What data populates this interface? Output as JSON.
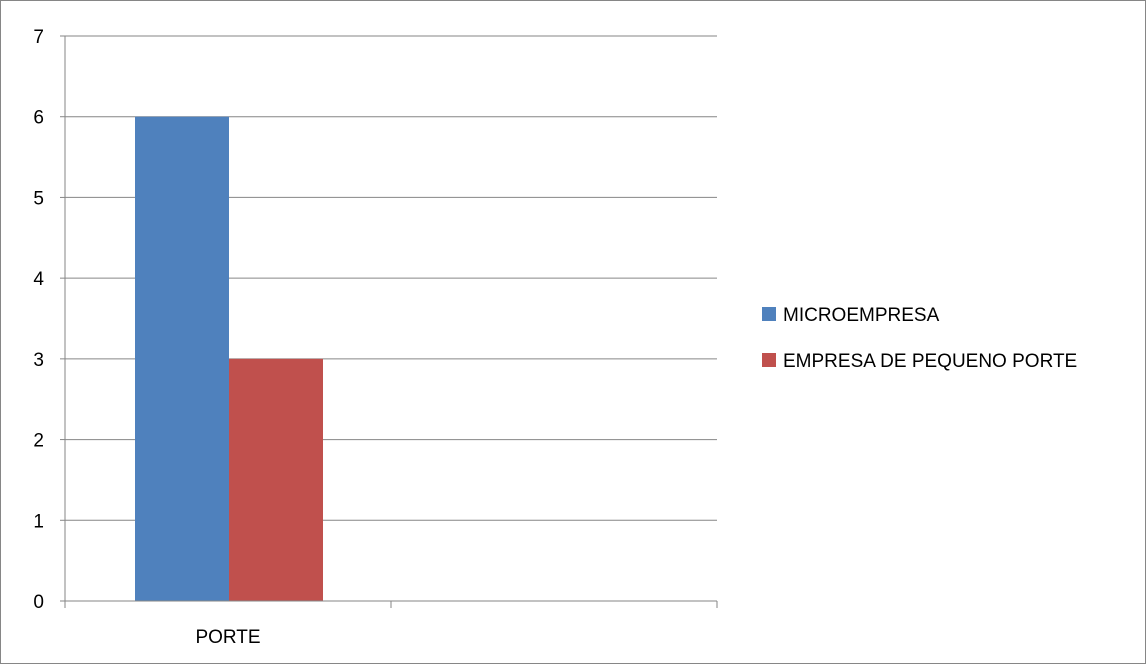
{
  "chart_data": {
    "type": "bar",
    "categories": [
      "PORTE"
    ],
    "series": [
      {
        "name": "MICROEMPRESA",
        "values": [
          6
        ],
        "color": "#4F81BD"
      },
      {
        "name": "EMPRESA DE PEQUENO PORTE",
        "values": [
          3
        ],
        "color": "#C0504D"
      }
    ],
    "title": "",
    "xlabel": "",
    "ylabel": "",
    "ylim": [
      0,
      7
    ],
    "yticks": [
      "0",
      "1",
      "2",
      "3",
      "4",
      "5",
      "6",
      "7"
    ],
    "grid": true,
    "legend_position": "right",
    "colors": {
      "grid": "#868686",
      "axis": "#868686"
    }
  }
}
